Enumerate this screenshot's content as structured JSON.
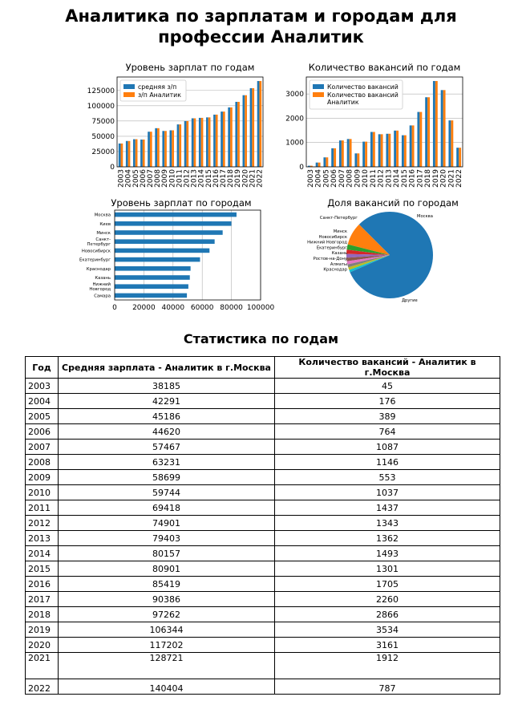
{
  "report": {
    "title_line1": "Аналитика по зарплатам и городам для",
    "title_line2": "профессии Аналитик"
  },
  "charts": [
    {
      "type": "bar",
      "title": "Уровень зарплат по годам",
      "categories": [
        "2003",
        "2004",
        "2005",
        "2006",
        "2007",
        "2008",
        "2009",
        "2010",
        "2011",
        "2012",
        "2013",
        "2014",
        "2015",
        "2016",
        "2017",
        "2018",
        "2019",
        "2020",
        "2021",
        "2022"
      ],
      "series": [
        {
          "name": "средняя з/п",
          "color": "#1f77b4",
          "values": [
            38185,
            42291,
            45186,
            44620,
            57467,
            63231,
            58699,
            59744,
            69418,
            74901,
            79403,
            80157,
            80901,
            85419,
            90386,
            97262,
            106344,
            117202,
            128721,
            140404
          ]
        },
        {
          "name": "з/п Аналитик",
          "color": "#ff7f0e",
          "values": [
            38185,
            42291,
            45186,
            44620,
            57467,
            63231,
            58699,
            59744,
            69418,
            74901,
            79403,
            80157,
            80901,
            85419,
            90386,
            97262,
            106344,
            117202,
            128721,
            140404
          ]
        }
      ],
      "yticks": [
        "0",
        "25000",
        "50000",
        "75000",
        "100000",
        "125000"
      ],
      "ylim": [
        0,
        147000
      ],
      "grid": "y",
      "legend": "top-left"
    },
    {
      "type": "bar",
      "title": "Количество вакансий по годам",
      "categories": [
        "2003",
        "2004",
        "2005",
        "2006",
        "2007",
        "2008",
        "2009",
        "2010",
        "2011",
        "2012",
        "2013",
        "2014",
        "2015",
        "2016",
        "2017",
        "2018",
        "2019",
        "2020",
        "2021",
        "2022"
      ],
      "series": [
        {
          "name": "Количество вакансий",
          "color": "#1f77b4",
          "values": [
            45,
            176,
            389,
            764,
            1087,
            1146,
            553,
            1037,
            1437,
            1343,
            1362,
            1493,
            1301,
            1705,
            2260,
            2866,
            3534,
            3161,
            1912,
            787
          ]
        },
        {
          "name": "Количество вакансий Аналитик",
          "color": "#ff7f0e",
          "values": [
            45,
            176,
            389,
            764,
            1087,
            1146,
            553,
            1037,
            1437,
            1343,
            1362,
            1493,
            1301,
            1705,
            2260,
            2866,
            3534,
            3161,
            1912,
            787
          ]
        }
      ],
      "yticks": [
        "0",
        "1000",
        "2000",
        "3000"
      ],
      "ylim": [
        0,
        3700
      ],
      "grid": "y",
      "legend": "top-left"
    },
    {
      "type": "barh",
      "title": "Уровень зарплат по городам",
      "color": "#1f77b4",
      "categories": [
        "Москва",
        "Киев",
        "Минск",
        "Санкт-\nПетербург",
        "Новосибирск",
        "Екатеринбург",
        "Краснодар",
        "Казань",
        "Нижний\nНовгород",
        "Самара"
      ],
      "values": [
        83500,
        80000,
        74000,
        68500,
        65000,
        58500,
        52000,
        51500,
        50500,
        49500
      ],
      "xticks": [
        "0",
        "20000",
        "40000",
        "60000",
        "80000",
        "100000"
      ],
      "xlim": [
        0,
        100000
      ],
      "grid": "x"
    },
    {
      "type": "pie",
      "title": "Доля вакансий по городам",
      "labels": [
        "Москва",
        "Санкт-Петербург",
        "Минск",
        "Новосибирск",
        "Нижний Новгород",
        "Екатеринбург",
        "Казань",
        "Ростов-на-Дону",
        "Алматы",
        "Краснодар",
        "Другие"
      ],
      "values": [
        37.5,
        8.5,
        2.0,
        1.6,
        1.4,
        1.3,
        1.2,
        1.1,
        1.0,
        0.9,
        43.5
      ],
      "colors": [
        "#1f77b4",
        "#ff7f0e",
        "#2ca02c",
        "#d62728",
        "#9467bd",
        "#8c564b",
        "#e377c2",
        "#7f7f7f",
        "#bcbd22",
        "#17becf",
        "#1f77b4"
      ]
    }
  ],
  "table_section": {
    "title": "Статистика по годам",
    "headers": [
      "Год",
      "Средняя зарплата - Аналитик в г.Москва",
      "Количество вакансий - Аналитик в г.Москва"
    ],
    "rows": [
      [
        "2003",
        "38185",
        "45"
      ],
      [
        "2004",
        "42291",
        "176"
      ],
      [
        "2005",
        "45186",
        "389"
      ],
      [
        "2006",
        "44620",
        "764"
      ],
      [
        "2007",
        "57467",
        "1087"
      ],
      [
        "2008",
        "63231",
        "1146"
      ],
      [
        "2009",
        "58699",
        "553"
      ],
      [
        "2010",
        "59744",
        "1037"
      ],
      [
        "2011",
        "69418",
        "1437"
      ],
      [
        "2012",
        "74901",
        "1343"
      ],
      [
        "2013",
        "79403",
        "1362"
      ],
      [
        "2014",
        "80157",
        "1493"
      ],
      [
        "2015",
        "80901",
        "1301"
      ],
      [
        "2016",
        "85419",
        "1705"
      ],
      [
        "2017",
        "90386",
        "2260"
      ],
      [
        "2018",
        "97262",
        "2866"
      ],
      [
        "2019",
        "106344",
        "3534"
      ],
      [
        "2020",
        "117202",
        "3161"
      ],
      [
        "2021",
        "128721",
        "1912"
      ],
      [
        "2022",
        "140404",
        "787"
      ]
    ]
  }
}
